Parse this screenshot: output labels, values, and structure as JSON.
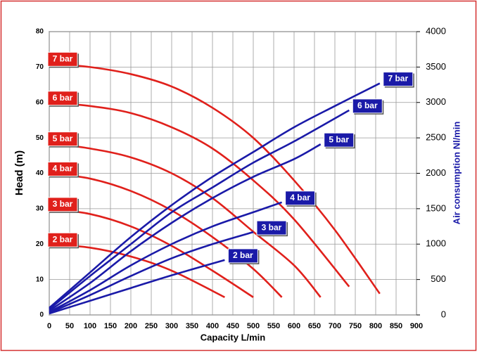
{
  "chart_data": {
    "type": "line",
    "xlabel": "Capacity L/min",
    "ylabel": "Head (m)",
    "y2label": "Air consumption Nl/min",
    "xlim": [
      0,
      900
    ],
    "xticks": [
      0,
      50,
      100,
      150,
      200,
      250,
      300,
      350,
      400,
      450,
      500,
      550,
      600,
      650,
      700,
      750,
      800,
      850,
      900
    ],
    "ylim": [
      0,
      80
    ],
    "yticks": [
      0,
      10,
      20,
      30,
      40,
      50,
      60,
      70,
      80
    ],
    "y2lim": [
      0,
      4000
    ],
    "y2ticks": [
      0,
      500,
      1000,
      1500,
      2000,
      2500,
      3000,
      3500,
      4000
    ],
    "grid": true,
    "series": [
      {
        "name": "7 bar",
        "color": "#e0201b",
        "x": [
          0,
          100,
          200,
          300,
          400,
          500,
          600,
          700,
          810
        ],
        "values": [
          71,
          70,
          68,
          64.5,
          58.5,
          50,
          38,
          24,
          6
        ]
      },
      {
        "name": "6 bar",
        "color": "#e0201b",
        "x": [
          0,
          100,
          200,
          300,
          400,
          500,
          600,
          735
        ],
        "values": [
          60,
          59,
          57,
          53,
          47,
          38,
          27,
          8
        ]
      },
      {
        "name": "5 bar",
        "color": "#e0201b",
        "x": [
          0,
          100,
          200,
          300,
          400,
          500,
          600,
          665
        ],
        "values": [
          48.5,
          47,
          44.5,
          40,
          33,
          23.5,
          14,
          5
        ]
      },
      {
        "name": "4 bar",
        "color": "#e0201b",
        "x": [
          0,
          100,
          200,
          300,
          400,
          500,
          570
        ],
        "values": [
          40,
          38.5,
          35,
          29.5,
          22,
          13,
          5
        ]
      },
      {
        "name": "3 bar",
        "color": "#e0201b",
        "x": [
          0,
          100,
          200,
          300,
          400,
          500
        ],
        "values": [
          30,
          28.5,
          25,
          19.5,
          12.5,
          5
        ]
      },
      {
        "name": "2 bar",
        "color": "#e0201b",
        "x": [
          0,
          100,
          200,
          300,
          430
        ],
        "values": [
          20,
          19,
          16.5,
          12.5,
          5
        ]
      },
      {
        "name": "7 bar",
        "color": "#1a1aa8",
        "axis": "y2",
        "x": [
          0,
          100,
          200,
          300,
          400,
          500,
          600,
          700,
          810
        ],
        "values": [
          100,
          600,
          1100,
          1550,
          1950,
          2300,
          2650,
          2950,
          3270
        ]
      },
      {
        "name": "6 bar",
        "color": "#1a1aa8",
        "axis": "y2",
        "x": [
          0,
          100,
          200,
          300,
          400,
          500,
          600,
          735
        ],
        "values": [
          80,
          550,
          1000,
          1450,
          1800,
          2150,
          2450,
          2890
        ]
      },
      {
        "name": "5 bar",
        "color": "#1a1aa8",
        "axis": "y2",
        "x": [
          0,
          100,
          200,
          300,
          400,
          500,
          600,
          665
        ],
        "values": [
          60,
          450,
          900,
          1300,
          1650,
          1950,
          2200,
          2410
        ]
      },
      {
        "name": "4 bar",
        "color": "#1a1aa8",
        "axis": "y2",
        "x": [
          0,
          100,
          200,
          300,
          400,
          500,
          570
        ],
        "values": [
          40,
          350,
          700,
          1000,
          1250,
          1450,
          1590
        ]
      },
      {
        "name": "3 bar",
        "color": "#1a1aa8",
        "axis": "y2",
        "x": [
          0,
          100,
          200,
          300,
          400,
          500
        ],
        "values": [
          30,
          280,
          550,
          800,
          1000,
          1170
        ]
      },
      {
        "name": "2 bar",
        "color": "#1a1aa8",
        "axis": "y2",
        "x": [
          0,
          100,
          200,
          300,
          430
        ],
        "values": [
          20,
          200,
          380,
          560,
          775
        ]
      }
    ]
  }
}
